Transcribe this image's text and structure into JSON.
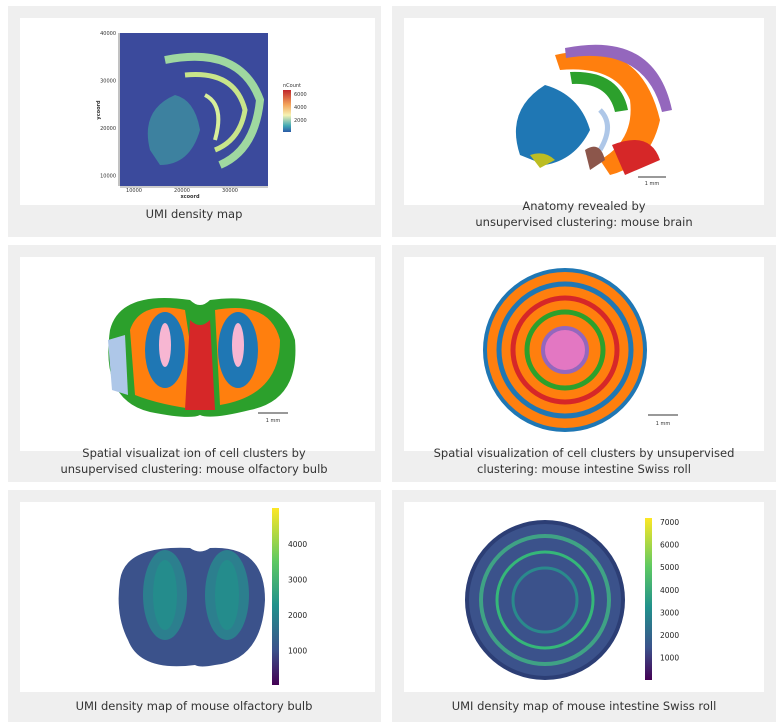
{
  "panels": [
    {
      "caption": [
        "UMI density map"
      ],
      "plot": {
        "y_label": "ycoord",
        "x_label": "xcoord",
        "yticks": [
          "40000",
          "30000",
          "20000",
          "10000"
        ],
        "xticks": [
          "10000",
          "20000",
          "30000"
        ],
        "legend_title": "nCount",
        "legend_ticks": [
          "6000",
          "4000",
          "2000"
        ]
      }
    },
    {
      "caption": [
        "Anatomy revealed by",
        "unsupervised clustering: mouse brain"
      ],
      "scale_bar": "1 mm"
    },
    {
      "caption": [
        "Spatial visualizat ion of cell clusters by",
        "unsupervised clustering: mouse olfactory bulb"
      ],
      "scale_bar": "1 mm"
    },
    {
      "caption": [
        "Spatial visualization of cell clusters by unsupervised",
        "clustering: mouse intestine Swiss roll"
      ],
      "scale_bar": "1 mm"
    },
    {
      "caption": [
        "UMI density map  of mouse olfactory bulb"
      ],
      "colorbar_ticks": [
        "4000",
        "3000",
        "2000",
        "1000"
      ]
    },
    {
      "caption": [
        "UMI density map of mouse intestine Swiss roll"
      ],
      "colorbar_ticks": [
        "7000",
        "6000",
        "5000",
        "4000",
        "3000",
        "2000",
        "1000"
      ]
    }
  ]
}
